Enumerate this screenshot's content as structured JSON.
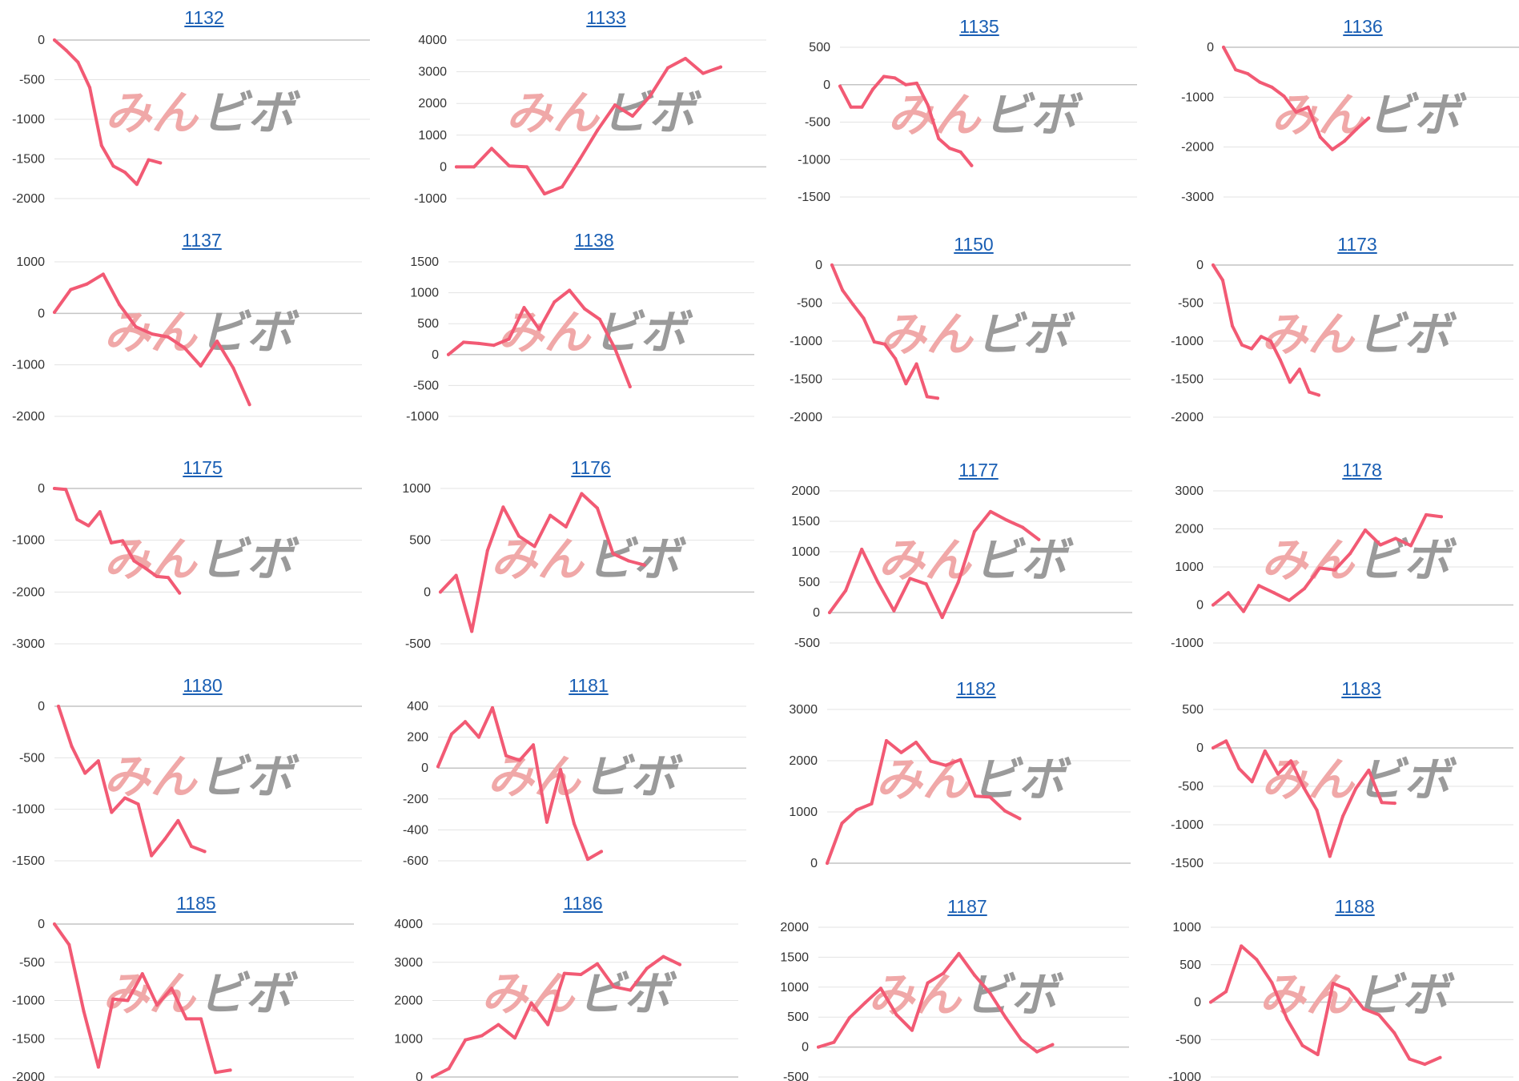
{
  "colors": {
    "line": "#f25a74",
    "grid": "#e3e3e3",
    "zero": "#c4c4c4",
    "link": "#1a5fb4",
    "watermark_red": "#f0a8a8",
    "watermark_gray": "#9a9a9a"
  },
  "watermark": {
    "left": "みん",
    "right": "ビボ"
  },
  "chart_data": [
    {
      "type": "line",
      "title": "1132",
      "yticks": [
        0,
        -500,
        -1000,
        -1500,
        -2000
      ],
      "ylim": [
        -2000,
        0
      ],
      "values": [
        0,
        -130,
        -280,
        -600,
        -1330,
        -1590,
        -1670,
        -1820,
        -1510,
        -1550
      ]
    },
    {
      "type": "line",
      "title": "1133",
      "yticks": [
        4000,
        3000,
        2000,
        1000,
        0,
        -1000
      ],
      "ylim": [
        -1000,
        4000
      ],
      "values": [
        0,
        0,
        580,
        30,
        0,
        -850,
        -630,
        240,
        1150,
        1950,
        1600,
        2240,
        3120,
        3420,
        2950,
        3150
      ]
    },
    {
      "type": "line",
      "title": "1135",
      "yticks": [
        500,
        0,
        -500,
        -1000,
        -1500
      ],
      "ylim": [
        -1500,
        500
      ],
      "values": [
        -20,
        -300,
        -300,
        -60,
        110,
        90,
        0,
        20,
        -270,
        -720,
        -850,
        -900,
        -1080
      ]
    },
    {
      "type": "line",
      "title": "1136",
      "yticks": [
        0,
        -1000,
        -2000,
        -3000
      ],
      "ylim": [
        -3000,
        0
      ],
      "values": [
        0,
        -450,
        -530,
        -700,
        -800,
        -980,
        -1300,
        -1200,
        -1800,
        -2050,
        -1880,
        -1640,
        -1420
      ]
    },
    {
      "type": "line",
      "title": "1137",
      "yticks": [
        1000,
        0,
        -1000,
        -2000
      ],
      "ylim": [
        -2000,
        1000
      ],
      "values": [
        20,
        460,
        570,
        760,
        170,
        -260,
        -400,
        -460,
        -670,
        -1020,
        -540,
        -1060,
        -1770
      ]
    },
    {
      "type": "line",
      "title": "1138",
      "yticks": [
        1500,
        1000,
        500,
        0,
        -500,
        -1000
      ],
      "ylim": [
        -1000,
        1500
      ],
      "values": [
        0,
        200,
        180,
        150,
        250,
        760,
        410,
        850,
        1040,
        740,
        570,
        100,
        -520
      ]
    },
    {
      "type": "line",
      "title": "1150",
      "yticks": [
        0,
        -500,
        -1000,
        -1500,
        -2000
      ],
      "ylim": [
        -2000,
        0
      ],
      "values": [
        0,
        -330,
        -520,
        -700,
        -1010,
        -1040,
        -1230,
        -1560,
        -1300,
        -1730,
        -1750
      ]
    },
    {
      "type": "line",
      "title": "1173",
      "yticks": [
        0,
        -500,
        -1000,
        -1500,
        -2000
      ],
      "ylim": [
        -2000,
        0
      ],
      "values": [
        0,
        -200,
        -800,
        -1050,
        -1100,
        -940,
        -1000,
        -1250,
        -1540,
        -1370,
        -1670,
        -1710
      ]
    },
    {
      "type": "line",
      "title": "1175",
      "yticks": [
        0,
        -1000,
        -2000,
        -3000
      ],
      "ylim": [
        -3000,
        0
      ],
      "values": [
        0,
        -20,
        -600,
        -720,
        -450,
        -1050,
        -1010,
        -1400,
        -1540,
        -1700,
        -1720,
        -2020
      ]
    },
    {
      "type": "line",
      "title": "1176",
      "yticks": [
        1000,
        500,
        0,
        -500
      ],
      "ylim": [
        -500,
        1000
      ],
      "values": [
        0,
        160,
        -380,
        400,
        820,
        540,
        440,
        740,
        630,
        950,
        810,
        370,
        300,
        260
      ]
    },
    {
      "type": "line",
      "title": "1177",
      "yticks": [
        2000,
        1500,
        1000,
        500,
        0,
        -500
      ],
      "ylim": [
        -500,
        2000
      ],
      "values": [
        0,
        360,
        1040,
        500,
        30,
        560,
        470,
        -80,
        500,
        1330,
        1660,
        1520,
        1400,
        1200
      ]
    },
    {
      "type": "line",
      "title": "1178",
      "yticks": [
        3000,
        2000,
        1000,
        0,
        -1000
      ],
      "ylim": [
        -1000,
        3000
      ],
      "values": [
        0,
        320,
        -170,
        510,
        320,
        120,
        430,
        970,
        920,
        1350,
        1970,
        1580,
        1750,
        1560,
        2370,
        2320
      ]
    },
    {
      "type": "line",
      "title": "1180",
      "yticks": [
        0,
        -500,
        -1000,
        -1500
      ],
      "ylim": [
        -1500,
        0
      ],
      "values": [
        0,
        -390,
        -650,
        -530,
        -1030,
        -890,
        -950,
        -1450,
        -1290,
        -1110,
        -1360,
        -1410
      ]
    },
    {
      "type": "line",
      "title": "1181",
      "yticks": [
        400,
        200,
        0,
        -200,
        -400,
        -600
      ],
      "ylim": [
        -600,
        400
      ],
      "values": [
        10,
        220,
        300,
        200,
        390,
        80,
        50,
        150,
        -350,
        -10,
        -360,
        -590,
        -540
      ]
    },
    {
      "type": "line",
      "title": "1182",
      "yticks": [
        3000,
        2000,
        1000,
        0
      ],
      "ylim": [
        0,
        3000
      ],
      "values": [
        0,
        780,
        1040,
        1160,
        2390,
        2160,
        2360,
        1990,
        1910,
        2020,
        1310,
        1290,
        1020,
        870
      ]
    },
    {
      "type": "line",
      "title": "1183",
      "yticks": [
        500,
        0,
        -500,
        -1000,
        -1500
      ],
      "ylim": [
        -1500,
        500
      ],
      "values": [
        0,
        90,
        -270,
        -440,
        -40,
        -340,
        -170,
        -520,
        -810,
        -1410,
        -890,
        -530,
        -290,
        -710,
        -720
      ]
    },
    {
      "type": "line",
      "title": "1185",
      "yticks": [
        0,
        -500,
        -1000,
        -1500,
        -2000
      ],
      "ylim": [
        -2000,
        0
      ],
      "values": [
        0,
        -270,
        -1140,
        -1870,
        -980,
        -1000,
        -650,
        -1060,
        -840,
        -1240,
        -1240,
        -1940,
        -1910
      ]
    },
    {
      "type": "line",
      "title": "1186",
      "yticks": [
        4000,
        3000,
        2000,
        1000,
        0
      ],
      "ylim": [
        0,
        4000
      ],
      "values": [
        0,
        220,
        970,
        1080,
        1370,
        1020,
        1940,
        1370,
        2710,
        2680,
        2960,
        2360,
        2270,
        2840,
        3150,
        2940
      ]
    },
    {
      "type": "line",
      "title": "1187",
      "yticks": [
        2000,
        1500,
        1000,
        500,
        0,
        -500
      ],
      "ylim": [
        -500,
        2000
      ],
      "values": [
        0,
        80,
        490,
        740,
        980,
        540,
        280,
        1070,
        1230,
        1560,
        1200,
        900,
        490,
        120,
        -80,
        40
      ]
    },
    {
      "type": "line",
      "title": "1188",
      "yticks": [
        1000,
        500,
        0,
        -500,
        -1000
      ],
      "ylim": [
        -1000,
        1000
      ],
      "values": [
        0,
        140,
        750,
        570,
        260,
        -230,
        -580,
        -700,
        250,
        170,
        -90,
        -170,
        -410,
        -760,
        -830,
        -740
      ]
    }
  ]
}
